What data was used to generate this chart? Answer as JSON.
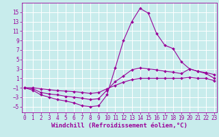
{
  "background_color": "#c8ecec",
  "line_color": "#990099",
  "grid_color": "#ffffff",
  "xlabel": "Windchill (Refroidissement éolien,°C)",
  "xlabel_color": "#990099",
  "xticks": [
    0,
    1,
    2,
    3,
    4,
    5,
    6,
    7,
    8,
    9,
    10,
    11,
    12,
    13,
    14,
    15,
    16,
    17,
    18,
    19,
    20,
    21,
    22,
    23
  ],
  "yticks": [
    -5,
    -3,
    -1,
    1,
    3,
    5,
    7,
    9,
    11,
    13,
    15
  ],
  "ylim": [
    -6.2,
    17.0
  ],
  "xlim": [
    -0.3,
    23.3
  ],
  "series": [
    {
      "x": [
        0,
        1,
        2,
        3,
        4,
        5,
        6,
        7,
        8,
        9,
        10,
        11,
        12,
        13,
        14,
        15,
        16,
        17,
        18,
        19,
        20,
        21,
        22,
        23
      ],
      "y": [
        -1,
        -1.5,
        -2.5,
        -3,
        -3.5,
        -3.8,
        -4.2,
        -4.8,
        -5,
        -4.8,
        -2.5,
        3.2,
        9,
        13,
        15.8,
        14.8,
        10.5,
        8,
        7.3,
        4.5,
        3,
        2.5,
        2,
        1
      ]
    },
    {
      "x": [
        0,
        1,
        2,
        3,
        4,
        5,
        6,
        7,
        8,
        9,
        10,
        11,
        12,
        13,
        14,
        15,
        16,
        17,
        18,
        19,
        20,
        21,
        22,
        23
      ],
      "y": [
        -1,
        -1.2,
        -2,
        -2.3,
        -2.5,
        -2.8,
        -3,
        -3.2,
        -3.5,
        -3.3,
        -1.5,
        0.3,
        1.5,
        2.8,
        3.2,
        3,
        2.8,
        2.5,
        2.3,
        2.0,
        3.0,
        2.5,
        2.2,
        1.8
      ]
    },
    {
      "x": [
        0,
        1,
        2,
        3,
        4,
        5,
        6,
        7,
        8,
        9,
        10,
        11,
        12,
        13,
        14,
        15,
        16,
        17,
        18,
        19,
        20,
        21,
        22,
        23
      ],
      "y": [
        -1,
        -1.0,
        -1.2,
        -1.4,
        -1.6,
        -1.7,
        -1.8,
        -2.0,
        -2.2,
        -2.0,
        -1.2,
        -0.5,
        0.2,
        0.7,
        1.0,
        1.0,
        1.0,
        1.0,
        1.0,
        1.0,
        1.2,
        1.0,
        1.0,
        0.5
      ]
    }
  ],
  "markersize": 2.0,
  "linewidth": 0.8,
  "tick_fontsize": 5.5,
  "xlabel_fontsize": 6.5
}
